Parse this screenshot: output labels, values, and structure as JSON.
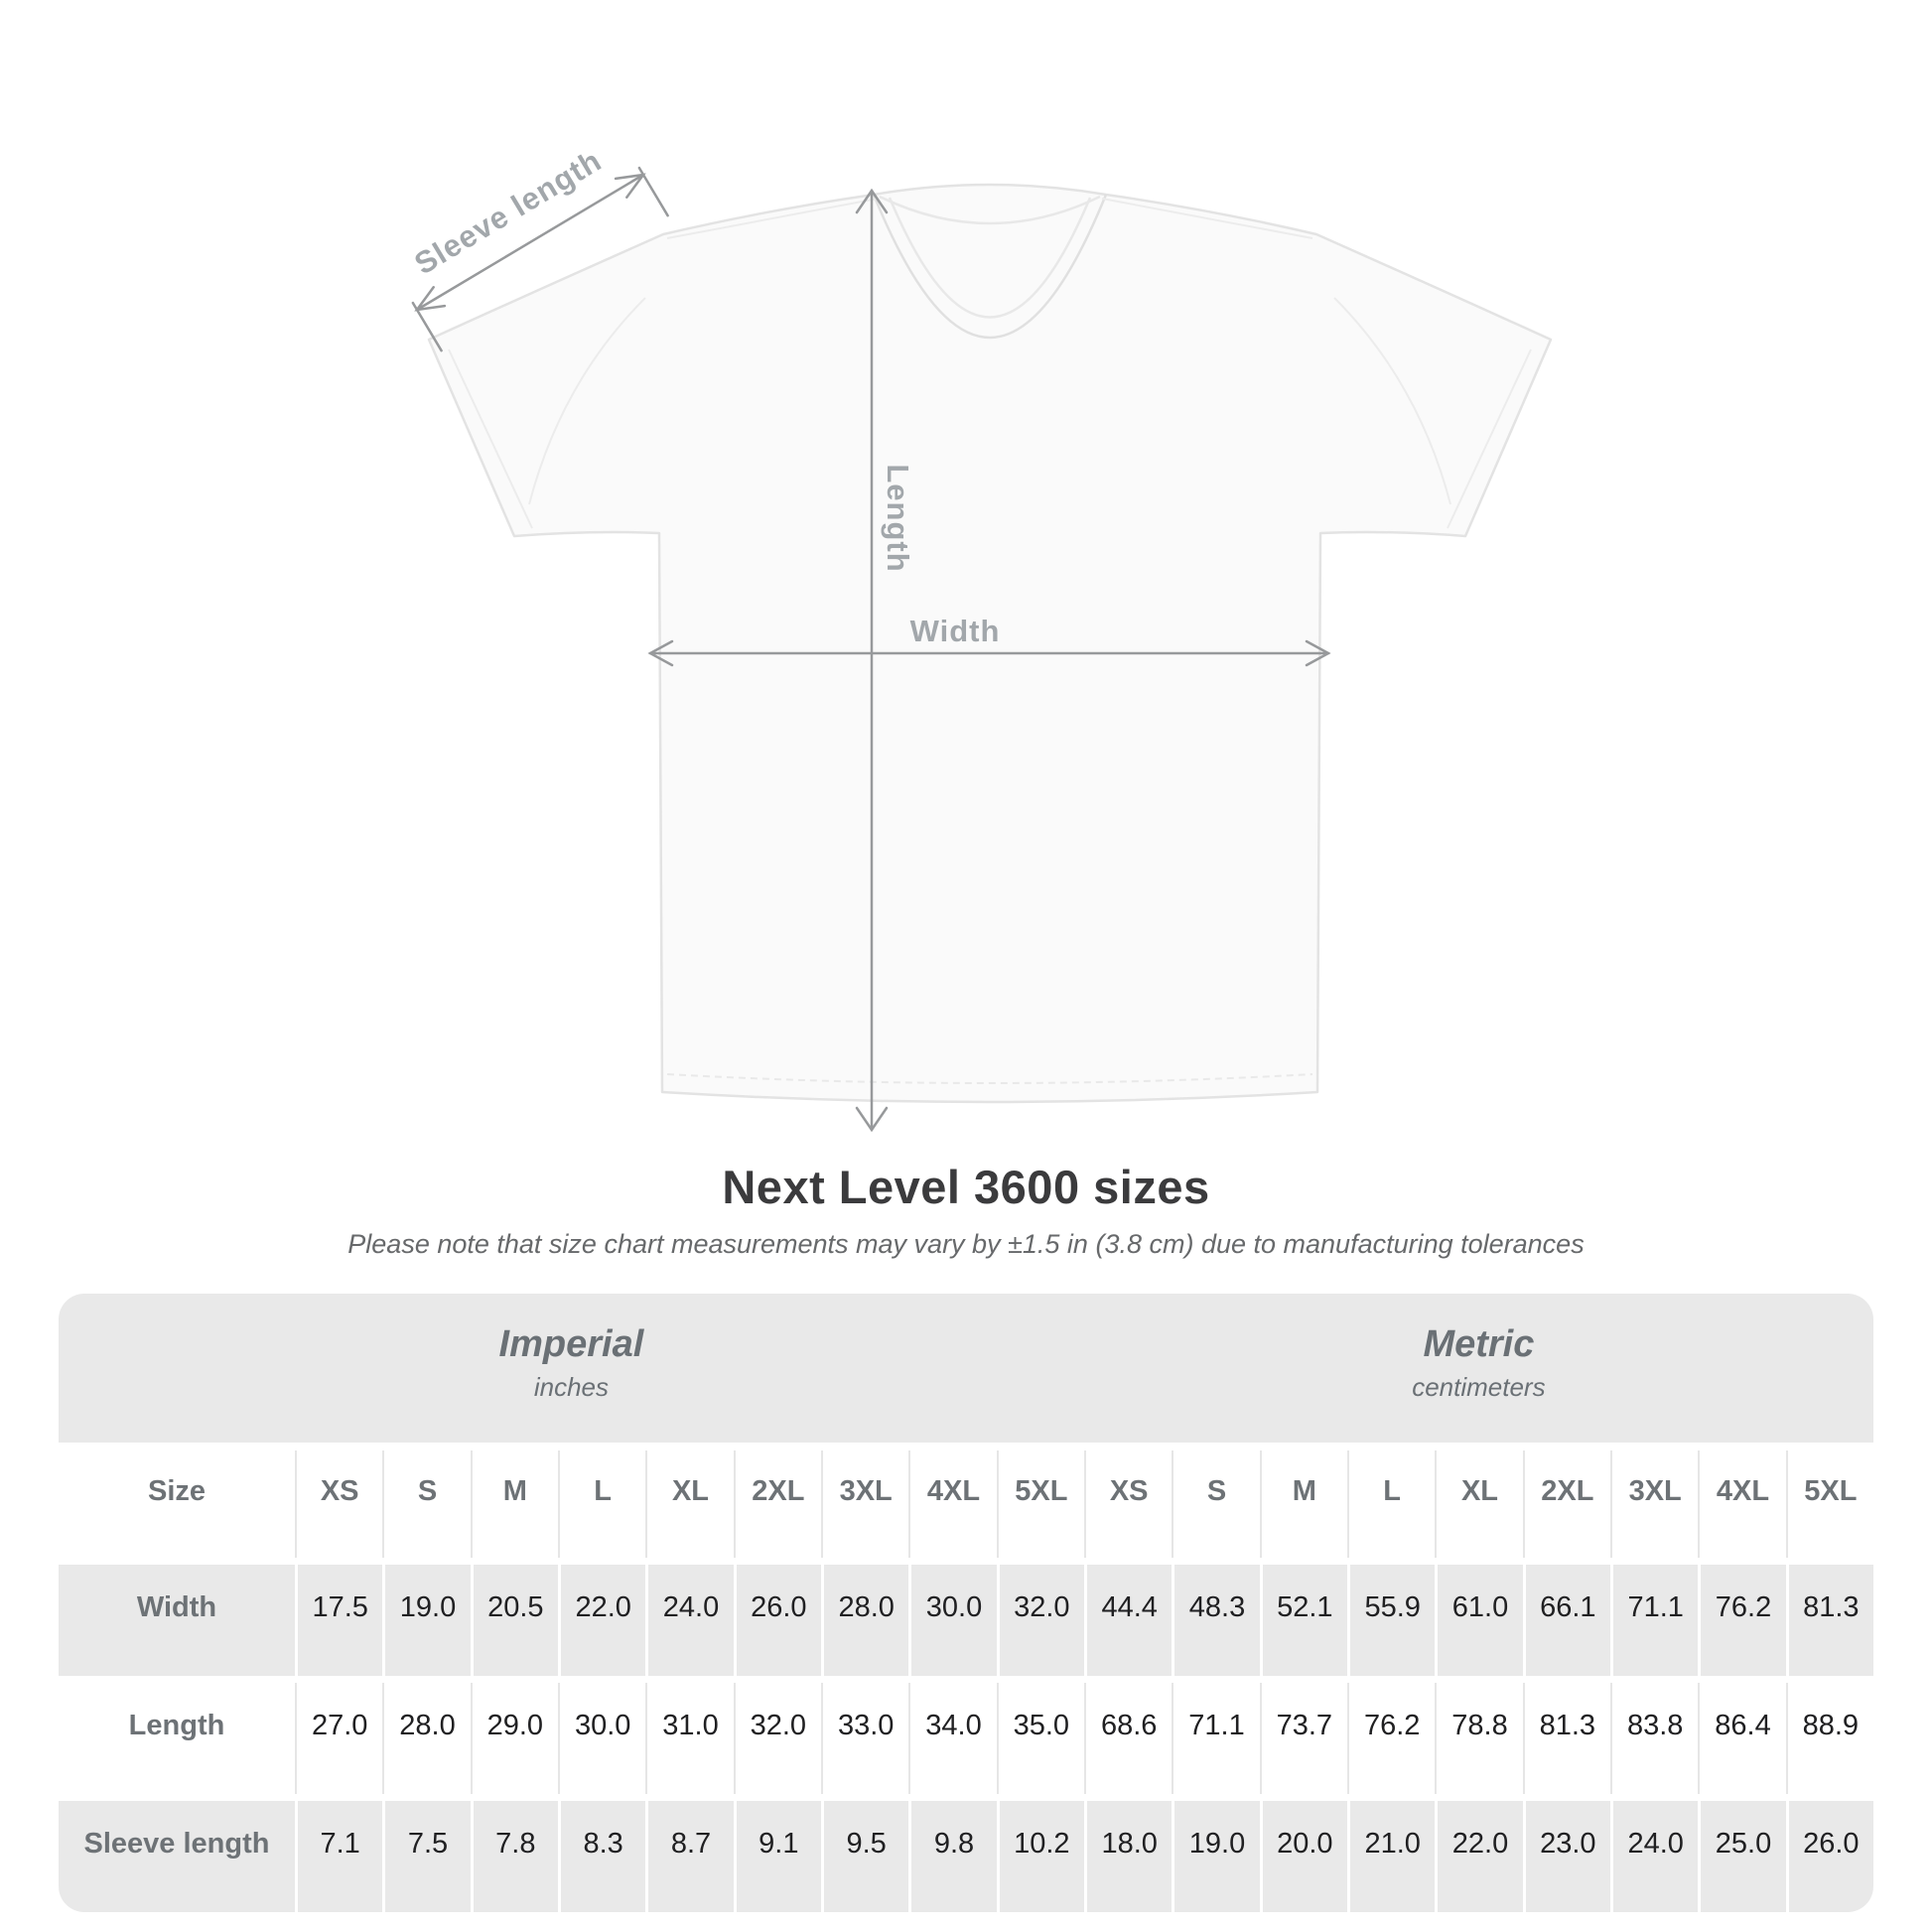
{
  "diagram": {
    "sleeve_label": "Sleeve length",
    "length_label": "Length",
    "width_label": "Width"
  },
  "chart_data": {
    "type": "table",
    "title": "Next Level 3600 sizes",
    "subtitle": "Please note that size chart measurements may vary by ±1.5 in (3.8 cm) due to manufacturing tolerances",
    "size_header_label": "Size",
    "column_groups": [
      {
        "name": "Imperial",
        "unit": "inches"
      },
      {
        "name": "Metric",
        "unit": "centimeters"
      }
    ],
    "size_columns": [
      "XS",
      "S",
      "M",
      "L",
      "XL",
      "2XL",
      "3XL",
      "4XL",
      "5XL"
    ],
    "rows": [
      {
        "label": "Width",
        "imperial": [
          "17.5",
          "19.0",
          "20.5",
          "22.0",
          "24.0",
          "26.0",
          "28.0",
          "30.0",
          "32.0"
        ],
        "metric": [
          "44.4",
          "48.3",
          "52.1",
          "55.9",
          "61.0",
          "66.1",
          "71.1",
          "76.2",
          "81.3"
        ]
      },
      {
        "label": "Length",
        "imperial": [
          "27.0",
          "28.0",
          "29.0",
          "30.0",
          "31.0",
          "32.0",
          "33.0",
          "34.0",
          "35.0"
        ],
        "metric": [
          "68.6",
          "71.1",
          "73.7",
          "76.2",
          "78.8",
          "81.3",
          "83.8",
          "86.4",
          "88.9"
        ]
      },
      {
        "label": "Sleeve length",
        "imperial": [
          "7.1",
          "7.5",
          "7.8",
          "8.3",
          "8.7",
          "9.1",
          "9.5",
          "9.8",
          "10.2"
        ],
        "metric": [
          "18.0",
          "19.0",
          "20.0",
          "21.0",
          "22.0",
          "23.0",
          "24.0",
          "25.0",
          "26.0"
        ]
      }
    ]
  },
  "colors": {
    "table_band": "#e9e9e9",
    "arrow_gray": "#97999b",
    "diagram_label_gray": "#a2a7ab",
    "header_text": "#6d7276",
    "value_text": "#202022",
    "title_text": "#3b3b3d",
    "shirt_fill": "#fafafa",
    "shirt_outline": "#e3e3e3"
  }
}
